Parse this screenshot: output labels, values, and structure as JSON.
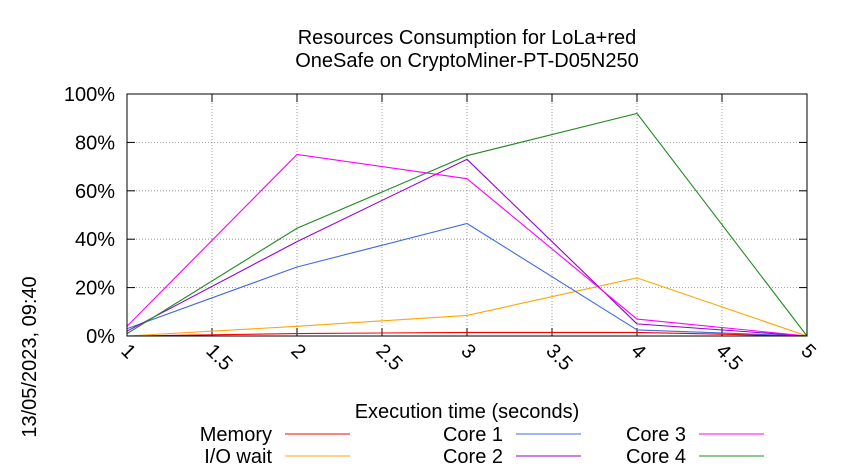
{
  "chart_data": {
    "type": "line",
    "title": [
      "Resources Consumption for LoLa+red",
      "OneSafe on CryptoMiner-PT-D05N250"
    ],
    "xlabel": "Execution time (seconds)",
    "ylabel": "",
    "side_label": "13/05/2023, 09:40",
    "xlim": [
      1,
      5
    ],
    "ylim": [
      0,
      100
    ],
    "x_ticks": [
      "1",
      "1.5",
      "2",
      "2.5",
      "3",
      "3.5",
      "4",
      "4.5",
      "5"
    ],
    "y_ticks": [
      "0%",
      "20%",
      "40%",
      "60%",
      "80%",
      "100%"
    ],
    "grid": true,
    "legend": "bottom",
    "series": [
      {
        "name": "Memory",
        "color": "#ff0000",
        "points": [
          [
            1,
            0
          ],
          [
            2,
            1
          ],
          [
            3,
            1.5
          ],
          [
            4,
            1.5
          ],
          [
            5,
            0
          ]
        ]
      },
      {
        "name": "I/O wait",
        "color": "#ffa500",
        "points": [
          [
            1,
            0
          ],
          [
            2,
            4
          ],
          [
            3,
            8.5
          ],
          [
            4,
            24
          ],
          [
            5,
            0
          ]
        ]
      },
      {
        "name": "Core 1",
        "color": "#4169e1",
        "points": [
          [
            1,
            3
          ],
          [
            2,
            28.5
          ],
          [
            3,
            46.5
          ],
          [
            4,
            2.5
          ],
          [
            5,
            0
          ]
        ]
      },
      {
        "name": "Core 2",
        "color": "#9400d3",
        "points": [
          [
            1,
            2
          ],
          [
            2,
            39
          ],
          [
            3,
            73
          ],
          [
            4,
            5
          ],
          [
            5,
            0
          ]
        ]
      },
      {
        "name": "Core 3",
        "color": "#ff00ff",
        "points": [
          [
            1,
            4
          ],
          [
            2,
            75
          ],
          [
            3,
            65
          ],
          [
            4,
            7
          ],
          [
            5,
            0
          ]
        ]
      },
      {
        "name": "Core 4",
        "color": "#228b22",
        "points": [
          [
            1,
            1
          ],
          [
            2,
            44.5
          ],
          [
            3,
            74.5
          ],
          [
            4,
            92
          ],
          [
            5,
            0
          ]
        ]
      }
    ]
  }
}
